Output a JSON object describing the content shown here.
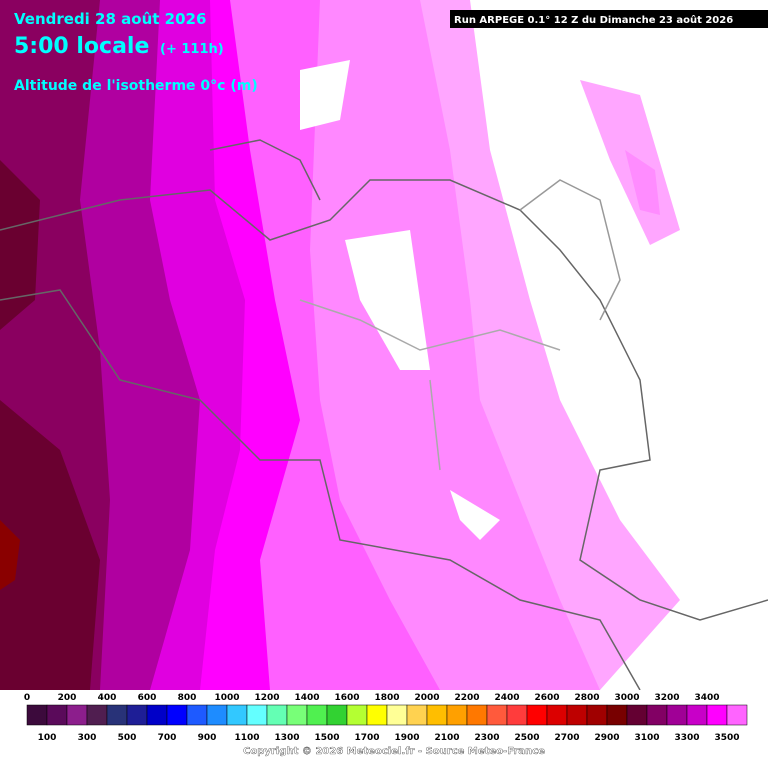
{
  "header": {
    "date": "Vendredi 28 août 2026",
    "time": "5:00 locale",
    "lead": "(+ 111h)",
    "parameter": "Altitude de l'isotherme 0°c (m)",
    "run": "Run ARPEGE 0.1° 12 Z du Dimanche 23 août 2026"
  },
  "legend": {
    "top_labels": [
      0,
      200,
      400,
      600,
      800,
      1000,
      1200,
      1400,
      1600,
      1800,
      2000,
      2200,
      2400,
      2600,
      2800,
      3000,
      3200,
      3400
    ],
    "bottom_labels": [
      100,
      300,
      500,
      700,
      900,
      1100,
      1300,
      1500,
      1700,
      1900,
      2100,
      2300,
      2500,
      2700,
      2900,
      3100,
      3300,
      3500
    ],
    "colors": [
      "#3c0a3c",
      "#5a0a5a",
      "#8c1e8c",
      "#501e50",
      "#283278",
      "#1e1e96",
      "#0000c8",
      "#0000ff",
      "#1e5aff",
      "#1e8cff",
      "#32c8ff",
      "#64ffff",
      "#64ffb4",
      "#78ff78",
      "#50f050",
      "#32d232",
      "#b4ff32",
      "#ffff00",
      "#ffff96",
      "#ffd250",
      "#ffbe00",
      "#ffa000",
      "#ff7800",
      "#ff5a3c",
      "#ff3c3c",
      "#ff0000",
      "#dc0000",
      "#be0000",
      "#a00000",
      "#780000",
      "#640032",
      "#820064",
      "#a00096",
      "#c800c8",
      "#ff00ff",
      "#ff64ff"
    ]
  },
  "footer": {
    "copyright": "Copyright © 2026 Meteociel.fr - Source Meteo-France"
  }
}
